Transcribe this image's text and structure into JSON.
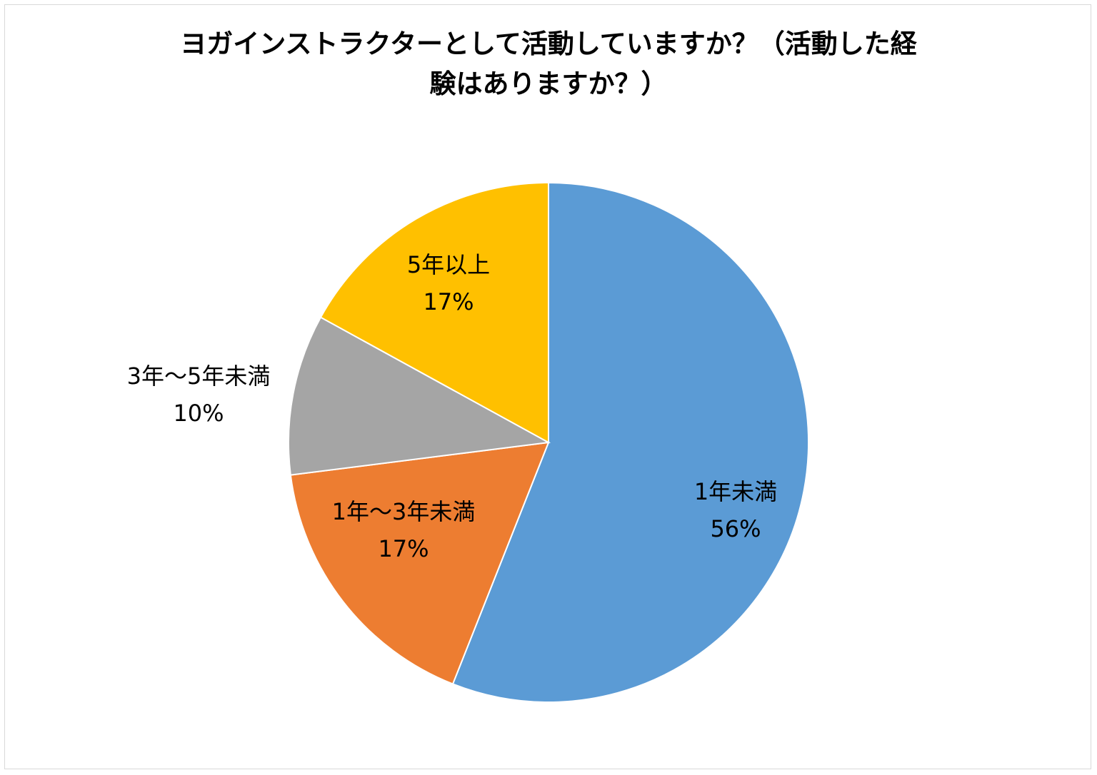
{
  "chart_data": {
    "type": "pie",
    "title": "ヨガインストラクターとして活動していますか？（活動した経験はありますか？）",
    "title_lines": [
      "ヨガインストラクターとして活動していますか？（活動した経",
      "験はありますか？）"
    ],
    "slices": [
      {
        "name": "1年未満",
        "value": 56,
        "percent_label": "56%",
        "color": "#5B9BD5"
      },
      {
        "name": "1年～3年未満",
        "value": 17,
        "percent_label": "17%",
        "color": "#ED7D31"
      },
      {
        "name": "3年～5年未満",
        "value": 10,
        "percent_label": "10%",
        "color": "#A5A5A5"
      },
      {
        "name": "5年以上",
        "value": 17,
        "percent_label": "17%",
        "color": "#FFC000"
      }
    ],
    "start_angle": "12 o'clock",
    "direction": "clockwise",
    "legend": "none"
  }
}
